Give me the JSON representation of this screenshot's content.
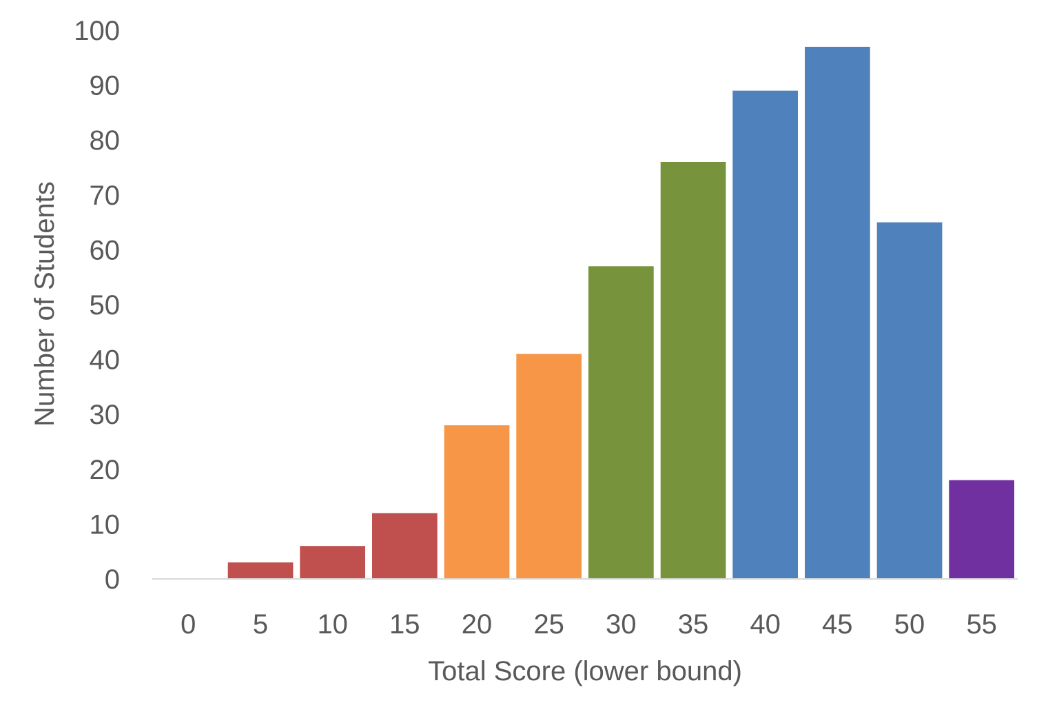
{
  "chart_data": {
    "type": "bar",
    "title": "",
    "xlabel": "Total Score (lower bound)",
    "ylabel": "Number of Students",
    "categories": [
      "0",
      "5",
      "10",
      "15",
      "20",
      "25",
      "30",
      "35",
      "40",
      "45",
      "50",
      "55"
    ],
    "values": [
      0,
      3,
      6,
      12,
      28,
      41,
      57,
      76,
      89,
      97,
      65,
      18
    ],
    "bar_colors": [
      "#C0504D",
      "#C0504D",
      "#C0504D",
      "#C0504D",
      "#F79646",
      "#F79646",
      "#77933C",
      "#77933C",
      "#4F81BD",
      "#4F81BD",
      "#4F81BD",
      "#7030A0"
    ],
    "ylim": [
      0,
      100
    ],
    "yticks": [
      0,
      10,
      20,
      30,
      40,
      50,
      60,
      70,
      80,
      90,
      100
    ],
    "grid": false,
    "legend": "none"
  },
  "colors": {
    "text": "#595959",
    "axis_line": "#D9D9D9",
    "red": "#C0504D",
    "orange": "#F79646",
    "green": "#77933C",
    "blue": "#4F81BD",
    "purple": "#7030A0"
  }
}
